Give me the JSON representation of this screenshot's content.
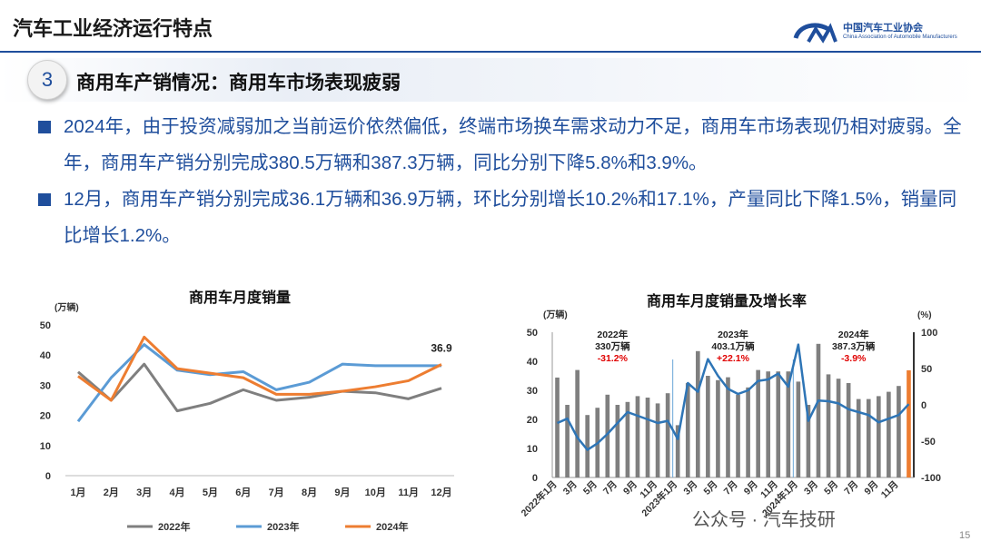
{
  "header": {
    "title": "汽车工业经济运行特点",
    "logo_cn": "中国汽车工业协会",
    "logo_en": "China Association of Automobile Manufacturers"
  },
  "section": {
    "number": "3",
    "title": "商用车产销情况：商用车市场表现疲弱"
  },
  "paragraphs": [
    "2024年，由于投资减弱加之当前运价依然偏低，终端市场换车需求动力不足，商用车市场表现仍相对疲弱。全年，商用车产销分别完成380.5万辆和387.3万辆，同比分别下降5.8%和3.9%。",
    "12月，商用车产销分别完成36.1万辆和36.9万辆，环比分别增长10.2%和17.1%，产量同比下降1.5%，销量同比增长1.2%。"
  ],
  "chart_data": [
    {
      "type": "line",
      "title": "商用车月度销量",
      "ylabel": "(万辆)",
      "ylim": [
        0,
        50
      ],
      "yticks": [
        "0",
        "10",
        "20",
        "30",
        "40",
        "50"
      ],
      "categories": [
        "1月",
        "2月",
        "3月",
        "4月",
        "5月",
        "6月",
        "7月",
        "8月",
        "9月",
        "10月",
        "11月",
        "12月"
      ],
      "series": [
        {
          "name": "2022年",
          "color": "#7f7f7f",
          "values": [
            34.4,
            25.0,
            37.0,
            21.5,
            24.0,
            28.5,
            25.0,
            26.0,
            28.0,
            27.5,
            25.5,
            29.0
          ]
        },
        {
          "name": "2023年",
          "color": "#5b9bd5",
          "values": [
            18.0,
            32.5,
            43.5,
            35.0,
            33.5,
            34.5,
            28.5,
            31.0,
            37.0,
            36.5,
            36.5,
            36.5
          ]
        },
        {
          "name": "2024年",
          "color": "#ed7d31",
          "values": [
            33.0,
            25.0,
            46.0,
            35.5,
            34.0,
            32.5,
            27.0,
            27.0,
            28.0,
            29.5,
            31.5,
            36.9
          ]
        }
      ],
      "end_label": "36.9",
      "legend": "bottom"
    },
    {
      "type": "bar",
      "title": "商用车月度销量及增长率",
      "ylabel_left": "(万辆)",
      "ylabel_right": "(%)",
      "ylim_left": [
        0,
        50
      ],
      "ylim_right": [
        -100,
        100
      ],
      "yticks_left": [
        "0",
        "10",
        "20",
        "30",
        "40",
        "50"
      ],
      "yticks_right": [
        "-100",
        "-50",
        "0",
        "50",
        "100"
      ],
      "xticks": [
        "2022年1月",
        "3月",
        "5月",
        "7月",
        "9月",
        "11月",
        "2023年1月",
        "3月",
        "5月",
        "7月",
        "9月",
        "11月",
        "2024年1月",
        "3月",
        "5月",
        "7月",
        "9月",
        "11月"
      ],
      "bars": [
        34.4,
        25.0,
        37.0,
        21.5,
        24.0,
        28.5,
        25.0,
        26.0,
        28.0,
        27.5,
        25.5,
        29.0,
        18.0,
        32.5,
        43.5,
        35.0,
        33.5,
        34.5,
        28.5,
        31.0,
        37.0,
        36.5,
        36.5,
        36.5,
        33.0,
        25.0,
        46.0,
        35.5,
        34.0,
        32.5,
        27.0,
        27.0,
        28.0,
        29.5,
        31.5,
        36.9
      ],
      "growth": [
        -25,
        -19,
        -45,
        -62,
        -53,
        -40,
        -25,
        -10,
        -15,
        -20,
        -25,
        -22,
        -47,
        30,
        18,
        63,
        40,
        22,
        15,
        20,
        33,
        35,
        43,
        25,
        83,
        -22,
        6,
        5,
        2,
        -6,
        -10,
        -14,
        -24,
        -19,
        -14,
        1
      ],
      "bar_color": "#7f7f7f",
      "last_bar_color": "#ed7d31",
      "growth_color": "#2e75b6",
      "annotations": [
        {
          "year": "2022年",
          "total": "330万辆",
          "rate": "-31.2%"
        },
        {
          "year": "2023年",
          "total": "403.1万辆",
          "rate": "+22.1%"
        },
        {
          "year": "2024年",
          "total": "387.3万辆",
          "rate": "-3.9%"
        }
      ]
    }
  ],
  "watermark": "公众号 · 汽车技研",
  "page_number": "15",
  "colors": {
    "accent": "#1f4e9c",
    "red": "#e00000"
  }
}
